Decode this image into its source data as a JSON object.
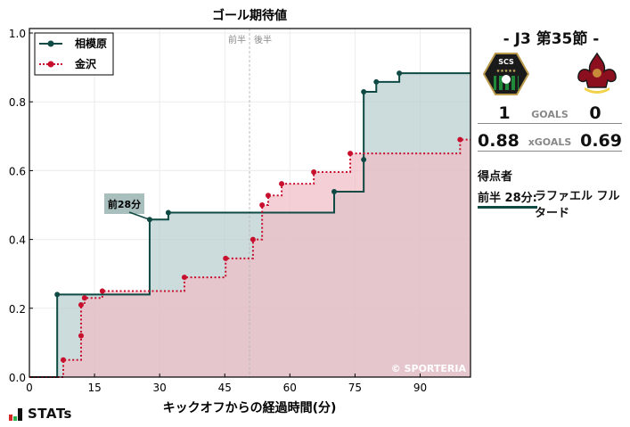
{
  "chart_data": {
    "type": "line",
    "subtype": "step-cumulative-xg",
    "title": "ゴール期待値",
    "xlabel": "キックオフからの経過時間(分)",
    "ylabel": "",
    "xlim": [
      0,
      101.6
    ],
    "ylim": [
      0,
      1.013
    ],
    "xticks": [
      0,
      15,
      30,
      45,
      60,
      75,
      90
    ],
    "yticks": [
      0.0,
      0.2,
      0.4,
      0.6,
      0.8,
      1.0
    ],
    "ytick_labels": [
      "0.0",
      "0.2",
      "0.4",
      "0.6",
      "0.8",
      "1.0"
    ],
    "grid": true,
    "legend_position": "upper left",
    "halftime_marker": {
      "x": 50.7,
      "left_label": "前半",
      "right_label": "後半"
    },
    "annotation": {
      "text": "前28分",
      "x": 27.7,
      "y": 0.458
    },
    "watermark": "© SPORTERIA",
    "series": [
      {
        "name": "相模原",
        "color": "#0f4a44",
        "fill": "#b7cdcd",
        "style": "solid",
        "points": [
          [
            0,
            0.0
          ],
          [
            6.4,
            0.24
          ],
          [
            27.7,
            0.458
          ],
          [
            32.0,
            0.478
          ],
          [
            70.2,
            0.539
          ],
          [
            77.0,
            0.632
          ],
          [
            77.0,
            0.829
          ],
          [
            79.9,
            0.858
          ],
          [
            85.2,
            0.883
          ],
          [
            101.6,
            0.883
          ]
        ]
      },
      {
        "name": "金沢",
        "color": "#c8102e",
        "fill": "#f0bcc4",
        "style": "dotted",
        "points": [
          [
            0,
            0.0
          ],
          [
            7.8,
            0.05
          ],
          [
            11.9,
            0.12
          ],
          [
            11.9,
            0.21
          ],
          [
            12.7,
            0.23
          ],
          [
            16.8,
            0.25
          ],
          [
            35.7,
            0.29
          ],
          [
            45.2,
            0.345
          ],
          [
            51.5,
            0.4
          ],
          [
            53.6,
            0.5
          ],
          [
            55.0,
            0.528
          ],
          [
            58.1,
            0.562
          ],
          [
            65.5,
            0.596
          ],
          [
            73.9,
            0.65
          ],
          [
            99.2,
            0.69
          ],
          [
            101.6,
            0.69
          ]
        ]
      }
    ]
  },
  "match": {
    "title": "- J3 第35節 -",
    "home": {
      "name": "相模原",
      "crest_label": "SCS",
      "goals": "1",
      "xg": "0.88"
    },
    "away": {
      "name": "金沢",
      "goals": "0",
      "xg": "0.69"
    },
    "goals_label": "GOALS",
    "xgoals_label": "xGOALS"
  },
  "scorers": {
    "title": "得点者",
    "items": [
      {
        "time": "前半 28分:",
        "name": "ラファエル フルタード"
      }
    ]
  },
  "footer": {
    "brand": "STATs"
  }
}
